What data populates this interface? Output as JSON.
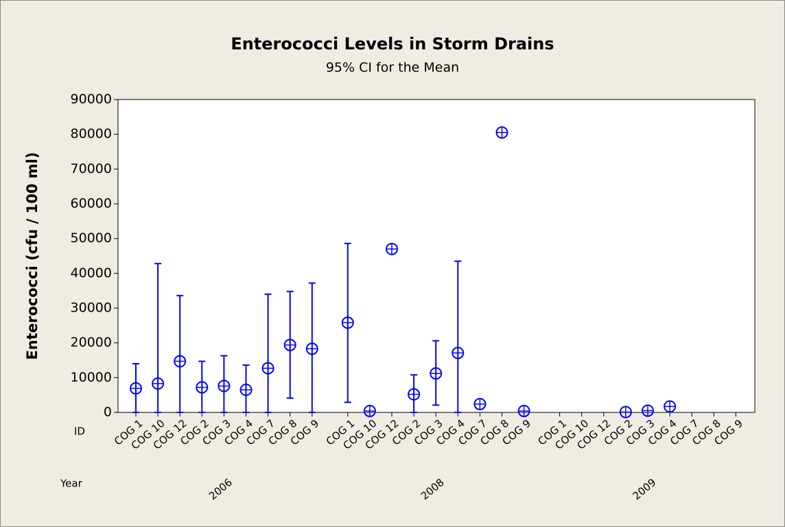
{
  "chart_data": {
    "type": "interval",
    "title": "Enterococci Levels in Storm Drains",
    "subtitle": "95% CI for the Mean",
    "ylabel": "Enterococci (cfu / 100 ml)",
    "x_row_labels": [
      "ID",
      "Year"
    ],
    "color": "#0000ff",
    "ylim": [
      0,
      90000
    ],
    "yticks": [
      0,
      10000,
      20000,
      30000,
      40000,
      50000,
      60000,
      70000,
      80000,
      90000
    ],
    "groups": [
      {
        "name": "2006",
        "categories": [
          "COG 1",
          "COG 10",
          "COG 12",
          "COG 2",
          "COG 3",
          "COG 4",
          "COG 7",
          "COG 8",
          "COG 9"
        ],
        "values": [
          6900,
          8300,
          14700,
          7200,
          7600,
          6500,
          12700,
          19400,
          18300
        ],
        "lower": [
          0,
          0,
          0,
          0,
          0,
          0,
          0,
          4100,
          0
        ],
        "upper": [
          14000,
          42800,
          33600,
          14700,
          16300,
          13600,
          34000,
          34800,
          37200
        ]
      },
      {
        "name": "2008",
        "categories": [
          "COG 1",
          "COG 10",
          "COG 12",
          "COG 2",
          "COG 3",
          "COG 4",
          "COG 7",
          "COG 8",
          "COG 9"
        ],
        "values": [
          25800,
          400,
          47000,
          5200,
          11200,
          17100,
          2400,
          80500,
          400
        ],
        "lower": [
          2900,
          null,
          null,
          0,
          2100,
          0,
          null,
          null,
          null
        ],
        "upper": [
          48600,
          null,
          null,
          10800,
          20600,
          43500,
          null,
          null,
          null
        ]
      },
      {
        "name": "2009",
        "categories": [
          "COG 1",
          "COG 10",
          "COG 12",
          "COG 2",
          "COG 3",
          "COG 4",
          "COG 7",
          "COG 8",
          "COG 9"
        ],
        "values": [
          null,
          null,
          null,
          100,
          500,
          1700,
          null,
          null,
          null
        ],
        "lower": [
          null,
          null,
          null,
          null,
          null,
          null,
          null,
          null,
          null
        ],
        "upper": [
          null,
          null,
          null,
          null,
          null,
          null,
          null,
          null,
          null
        ]
      }
    ]
  }
}
